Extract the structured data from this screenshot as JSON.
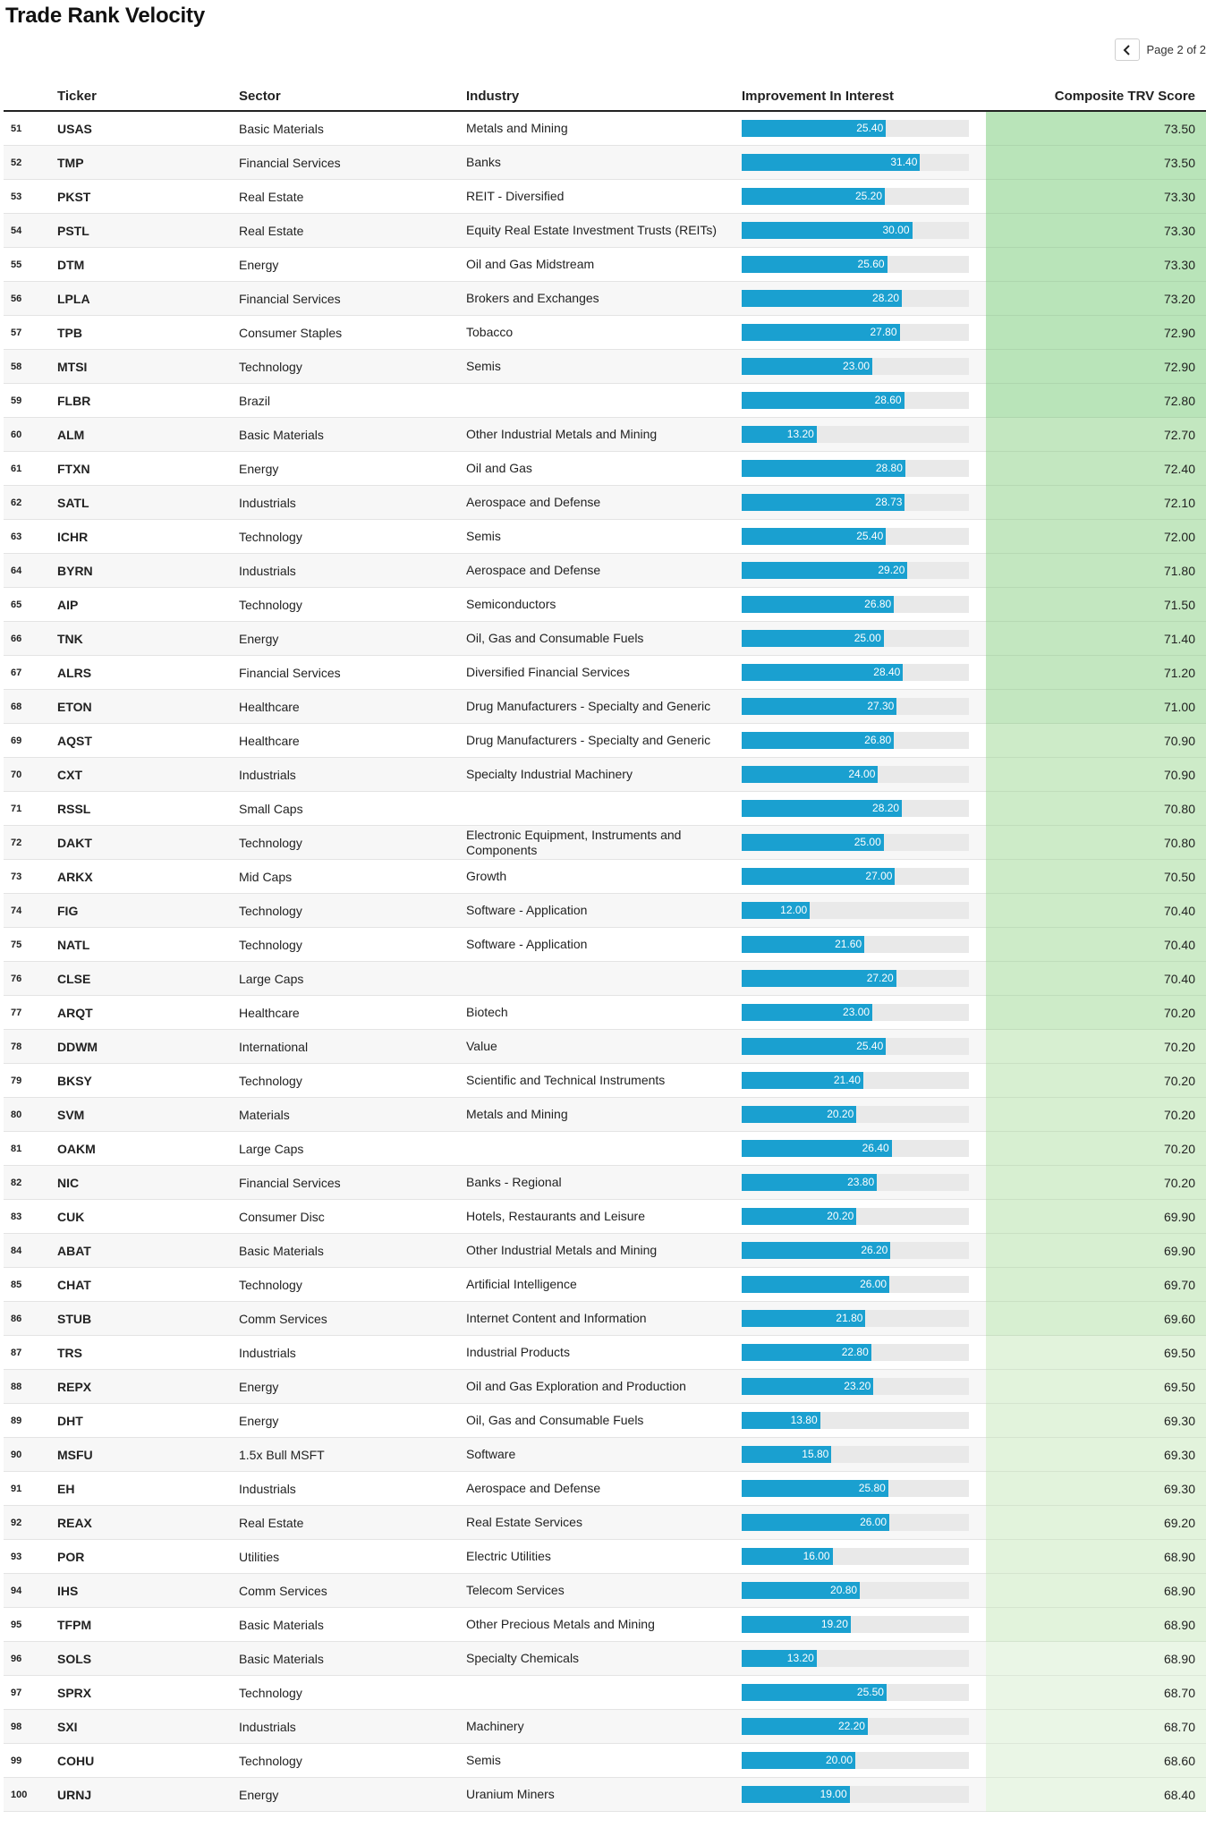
{
  "page": {
    "title": "Trade Rank Velocity",
    "pagination_label": "Page 2 of 2",
    "prev_icon": "chevron-left-icon"
  },
  "table": {
    "headers": {
      "rank": "",
      "ticker": "Ticker",
      "sector": "Sector",
      "industry": "Industry",
      "improvement": "Improvement In Interest",
      "score": "Composite TRV Score"
    },
    "bar_max": 40,
    "score_colors": [
      "#b9e4b9",
      "#c3e7c0",
      "#cdebc8",
      "#d7efd1",
      "#e2f3dc",
      "#eaf6e6"
    ],
    "rows": [
      {
        "rank": "51",
        "ticker": "USAS",
        "sector": "Basic Materials",
        "industry": "Metals and Mining",
        "improvement": "25.40",
        "score": "73.50"
      },
      {
        "rank": "52",
        "ticker": "TMP",
        "sector": "Financial Services",
        "industry": "Banks",
        "improvement": "31.40",
        "score": "73.50"
      },
      {
        "rank": "53",
        "ticker": "PKST",
        "sector": "Real Estate",
        "industry": "REIT - Diversified",
        "improvement": "25.20",
        "score": "73.30"
      },
      {
        "rank": "54",
        "ticker": "PSTL",
        "sector": "Real Estate",
        "industry": "Equity Real Estate Investment Trusts (REITs)",
        "improvement": "30.00",
        "score": "73.30"
      },
      {
        "rank": "55",
        "ticker": "DTM",
        "sector": "Energy",
        "industry": "Oil and Gas Midstream",
        "improvement": "25.60",
        "score": "73.30"
      },
      {
        "rank": "56",
        "ticker": "LPLA",
        "sector": "Financial Services",
        "industry": "Brokers and Exchanges",
        "improvement": "28.20",
        "score": "73.20"
      },
      {
        "rank": "57",
        "ticker": "TPB",
        "sector": "Consumer Staples",
        "industry": "Tobacco",
        "improvement": "27.80",
        "score": "72.90"
      },
      {
        "rank": "58",
        "ticker": "MTSI",
        "sector": "Technology",
        "industry": "Semis",
        "improvement": "23.00",
        "score": "72.90"
      },
      {
        "rank": "59",
        "ticker": "FLBR",
        "sector": "Brazil",
        "industry": "",
        "improvement": "28.60",
        "score": "72.80"
      },
      {
        "rank": "60",
        "ticker": "ALM",
        "sector": "Basic Materials",
        "industry": "Other Industrial Metals and Mining",
        "improvement": "13.20",
        "score": "72.70"
      },
      {
        "rank": "61",
        "ticker": "FTXN",
        "sector": "Energy",
        "industry": "Oil and Gas",
        "improvement": "28.80",
        "score": "72.40"
      },
      {
        "rank": "62",
        "ticker": "SATL",
        "sector": "Industrials",
        "industry": "Aerospace and Defense",
        "improvement": "28.73",
        "score": "72.10"
      },
      {
        "rank": "63",
        "ticker": "ICHR",
        "sector": "Technology",
        "industry": "Semis",
        "improvement": "25.40",
        "score": "72.00"
      },
      {
        "rank": "64",
        "ticker": "BYRN",
        "sector": "Industrials",
        "industry": "Aerospace and Defense",
        "improvement": "29.20",
        "score": "71.80"
      },
      {
        "rank": "65",
        "ticker": "AIP",
        "sector": "Technology",
        "industry": "Semiconductors",
        "improvement": "26.80",
        "score": "71.50"
      },
      {
        "rank": "66",
        "ticker": "TNK",
        "sector": "Energy",
        "industry": "Oil, Gas and Consumable Fuels",
        "improvement": "25.00",
        "score": "71.40"
      },
      {
        "rank": "67",
        "ticker": "ALRS",
        "sector": "Financial Services",
        "industry": "Diversified Financial Services",
        "improvement": "28.40",
        "score": "71.20"
      },
      {
        "rank": "68",
        "ticker": "ETON",
        "sector": "Healthcare",
        "industry": "Drug Manufacturers - Specialty and Generic",
        "improvement": "27.30",
        "score": "71.00"
      },
      {
        "rank": "69",
        "ticker": "AQST",
        "sector": "Healthcare",
        "industry": "Drug Manufacturers - Specialty and Generic",
        "improvement": "26.80",
        "score": "70.90"
      },
      {
        "rank": "70",
        "ticker": "CXT",
        "sector": "Industrials",
        "industry": "Specialty Industrial Machinery",
        "improvement": "24.00",
        "score": "70.90"
      },
      {
        "rank": "71",
        "ticker": "RSSL",
        "sector": "Small Caps",
        "industry": "",
        "improvement": "28.20",
        "score": "70.80"
      },
      {
        "rank": "72",
        "ticker": "DAKT",
        "sector": "Technology",
        "industry": "Electronic Equipment, Instruments and Components",
        "improvement": "25.00",
        "score": "70.80"
      },
      {
        "rank": "73",
        "ticker": "ARKX",
        "sector": "Mid Caps",
        "industry": "Growth",
        "improvement": "27.00",
        "score": "70.50"
      },
      {
        "rank": "74",
        "ticker": "FIG",
        "sector": "Technology",
        "industry": "Software - Application",
        "improvement": "12.00",
        "score": "70.40"
      },
      {
        "rank": "75",
        "ticker": "NATL",
        "sector": "Technology",
        "industry": "Software - Application",
        "improvement": "21.60",
        "score": "70.40"
      },
      {
        "rank": "76",
        "ticker": "CLSE",
        "sector": "Large Caps",
        "industry": "",
        "improvement": "27.20",
        "score": "70.40"
      },
      {
        "rank": "77",
        "ticker": "ARQT",
        "sector": "Healthcare",
        "industry": "Biotech",
        "improvement": "23.00",
        "score": "70.20"
      },
      {
        "rank": "78",
        "ticker": "DDWM",
        "sector": "International",
        "industry": "Value",
        "improvement": "25.40",
        "score": "70.20"
      },
      {
        "rank": "79",
        "ticker": "BKSY",
        "sector": "Technology",
        "industry": "Scientific and Technical Instruments",
        "improvement": "21.40",
        "score": "70.20"
      },
      {
        "rank": "80",
        "ticker": "SVM",
        "sector": "Materials",
        "industry": "Metals and Mining",
        "improvement": "20.20",
        "score": "70.20"
      },
      {
        "rank": "81",
        "ticker": "OAKM",
        "sector": "Large Caps",
        "industry": "",
        "improvement": "26.40",
        "score": "70.20"
      },
      {
        "rank": "82",
        "ticker": "NIC",
        "sector": "Financial Services",
        "industry": "Banks - Regional",
        "improvement": "23.80",
        "score": "70.20"
      },
      {
        "rank": "83",
        "ticker": "CUK",
        "sector": "Consumer Disc",
        "industry": "Hotels, Restaurants and Leisure",
        "improvement": "20.20",
        "score": "69.90"
      },
      {
        "rank": "84",
        "ticker": "ABAT",
        "sector": "Basic Materials",
        "industry": "Other Industrial Metals and Mining",
        "improvement": "26.20",
        "score": "69.90"
      },
      {
        "rank": "85",
        "ticker": "CHAT",
        "sector": "Technology",
        "industry": "Artificial Intelligence",
        "improvement": "26.00",
        "score": "69.70"
      },
      {
        "rank": "86",
        "ticker": "STUB",
        "sector": "Comm Services",
        "industry": "Internet Content and Information",
        "improvement": "21.80",
        "score": "69.60"
      },
      {
        "rank": "87",
        "ticker": "TRS",
        "sector": "Industrials",
        "industry": "Industrial Products",
        "improvement": "22.80",
        "score": "69.50"
      },
      {
        "rank": "88",
        "ticker": "REPX",
        "sector": "Energy",
        "industry": "Oil and Gas Exploration and Production",
        "improvement": "23.20",
        "score": "69.50"
      },
      {
        "rank": "89",
        "ticker": "DHT",
        "sector": "Energy",
        "industry": "Oil, Gas and Consumable Fuels",
        "improvement": "13.80",
        "score": "69.30"
      },
      {
        "rank": "90",
        "ticker": "MSFU",
        "sector": "1.5x Bull MSFT",
        "industry": "Software",
        "improvement": "15.80",
        "score": "69.30"
      },
      {
        "rank": "91",
        "ticker": "EH",
        "sector": "Industrials",
        "industry": "Aerospace and Defense",
        "improvement": "25.80",
        "score": "69.30"
      },
      {
        "rank": "92",
        "ticker": "REAX",
        "sector": "Real Estate",
        "industry": "Real Estate Services",
        "improvement": "26.00",
        "score": "69.20"
      },
      {
        "rank": "93",
        "ticker": "POR",
        "sector": "Utilities",
        "industry": "Electric Utilities",
        "improvement": "16.00",
        "score": "68.90"
      },
      {
        "rank": "94",
        "ticker": "IHS",
        "sector": "Comm Services",
        "industry": "Telecom Services",
        "improvement": "20.80",
        "score": "68.90"
      },
      {
        "rank": "95",
        "ticker": "TFPM",
        "sector": "Basic Materials",
        "industry": "Other Precious Metals and Mining",
        "improvement": "19.20",
        "score": "68.90"
      },
      {
        "rank": "96",
        "ticker": "SOLS",
        "sector": "Basic Materials",
        "industry": "Specialty Chemicals",
        "improvement": "13.20",
        "score": "68.90"
      },
      {
        "rank": "97",
        "ticker": "SPRX",
        "sector": "Technology",
        "industry": "",
        "improvement": "25.50",
        "score": "68.70"
      },
      {
        "rank": "98",
        "ticker": "SXI",
        "sector": "Industrials",
        "industry": "Machinery",
        "improvement": "22.20",
        "score": "68.70"
      },
      {
        "rank": "99",
        "ticker": "COHU",
        "sector": "Technology",
        "industry": "Semis",
        "improvement": "20.00",
        "score": "68.60"
      },
      {
        "rank": "100",
        "ticker": "URNJ",
        "sector": "Energy",
        "industry": "Uranium Miners",
        "improvement": "19.00",
        "score": "68.40"
      }
    ]
  }
}
